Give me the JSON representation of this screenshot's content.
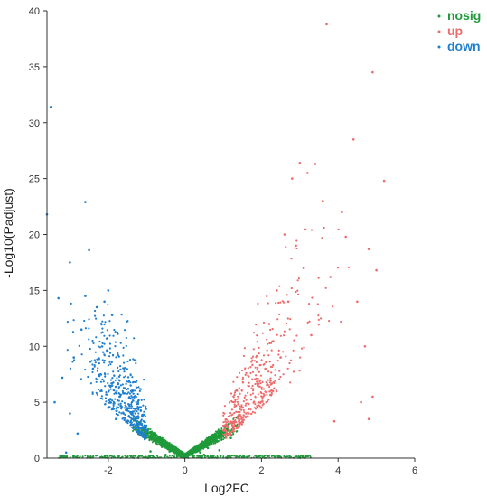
{
  "chart_data": {
    "type": "scatter",
    "title": "",
    "xlabel": "Log2FC",
    "ylabel": "-Log10(Padjust)",
    "xlim": [
      -3.6,
      6
    ],
    "ylim": [
      0,
      40
    ],
    "xticks": [
      -2,
      0,
      2,
      4,
      6
    ],
    "yticks": [
      0,
      5,
      10,
      15,
      20,
      25,
      30,
      35,
      40
    ],
    "grid": false,
    "legend_position": "top-right",
    "legend": [
      {
        "name": "nosig",
        "color": "#1f9a3a"
      },
      {
        "name": "up",
        "color": "#f06b6b"
      },
      {
        "name": "down",
        "color": "#1f7fd0"
      }
    ],
    "series": [
      {
        "name": "nosig",
        "color": "#1f9a3a",
        "description_values": "dense V-shaped cloud near origin",
        "points": [
          [
            -1.0,
            2.2
          ],
          [
            -0.8,
            1.6
          ],
          [
            -0.6,
            1.0
          ],
          [
            -0.4,
            0.6
          ],
          [
            -0.2,
            0.2
          ],
          [
            0.0,
            0.1
          ],
          [
            0.2,
            0.2
          ],
          [
            0.4,
            0.5
          ],
          [
            0.6,
            0.9
          ],
          [
            0.8,
            1.5
          ],
          [
            1.0,
            2.0
          ],
          [
            1.1,
            2.6
          ],
          [
            -1.1,
            2.5
          ],
          [
            -0.9,
            0.6
          ],
          [
            -0.5,
            0.3
          ],
          [
            0.5,
            0.3
          ],
          [
            0.9,
            0.7
          ],
          [
            1.2,
            1.8
          ],
          [
            -3.2,
            0.1
          ],
          [
            -2.5,
            0.1
          ],
          [
            -1.5,
            0.1
          ],
          [
            1.5,
            0.1
          ],
          [
            2.5,
            0.1
          ],
          [
            3.0,
            0.1
          ]
        ]
      },
      {
        "name": "up",
        "color": "#f06b6b",
        "points": [
          [
            3.7,
            38.8
          ],
          [
            4.9,
            34.5
          ],
          [
            4.4,
            28.5
          ],
          [
            5.2,
            24.8
          ],
          [
            3.0,
            26.4
          ],
          [
            3.4,
            26.3
          ],
          [
            3.2,
            25.5
          ],
          [
            2.8,
            25.0
          ],
          [
            3.6,
            23.0
          ],
          [
            4.1,
            22.0
          ],
          [
            4.2,
            19.8
          ],
          [
            4.8,
            18.7
          ],
          [
            2.6,
            20.0
          ],
          [
            2.9,
            19.0
          ],
          [
            3.1,
            17.0
          ],
          [
            3.8,
            16.2
          ],
          [
            4.5,
            14.0
          ],
          [
            5.0,
            16.8
          ],
          [
            2.4,
            15.0
          ],
          [
            2.7,
            14.0
          ],
          [
            2.2,
            12.0
          ],
          [
            3.3,
            11.0
          ],
          [
            4.7,
            10.0
          ],
          [
            2.5,
            9.0
          ],
          [
            2.1,
            8.0
          ],
          [
            1.9,
            6.5
          ],
          [
            4.6,
            5.0
          ],
          [
            4.9,
            5.5
          ],
          [
            3.9,
            3.3
          ],
          [
            4.8,
            3.5
          ],
          [
            2.3,
            6.0
          ],
          [
            1.8,
            5.0
          ],
          [
            1.6,
            4.0
          ],
          [
            1.5,
            3.2
          ],
          [
            1.4,
            2.8
          ],
          [
            2.0,
            4.5
          ]
        ]
      },
      {
        "name": "down",
        "color": "#1f7fd0",
        "points": [
          [
            -3.5,
            31.4
          ],
          [
            -3.6,
            21.8
          ],
          [
            -2.6,
            22.9
          ],
          [
            -2.5,
            18.6
          ],
          [
            -3.0,
            17.5
          ],
          [
            -2.0,
            15.0
          ],
          [
            -2.1,
            14.0
          ],
          [
            -2.6,
            14.5
          ],
          [
            -3.3,
            14.3
          ],
          [
            -2.3,
            13.5
          ],
          [
            -1.9,
            12.8
          ],
          [
            -2.7,
            11.5
          ],
          [
            -2.9,
            9.0
          ],
          [
            -3.2,
            7.2
          ],
          [
            -2.4,
            8.0
          ],
          [
            -2.2,
            7.5
          ],
          [
            -1.9,
            6.5
          ],
          [
            -1.7,
            5.5
          ],
          [
            -3.4,
            5.0
          ],
          [
            -3.0,
            4.0
          ],
          [
            -2.0,
            4.5
          ],
          [
            -1.6,
            4.0
          ],
          [
            -1.5,
            3.3
          ],
          [
            -1.3,
            2.8
          ],
          [
            -1.2,
            2.5
          ],
          [
            -1.4,
            3.0
          ],
          [
            -1.8,
            3.5
          ],
          [
            -2.8,
            2.2
          ],
          [
            -3.1,
            0.5
          ]
        ]
      }
    ]
  }
}
